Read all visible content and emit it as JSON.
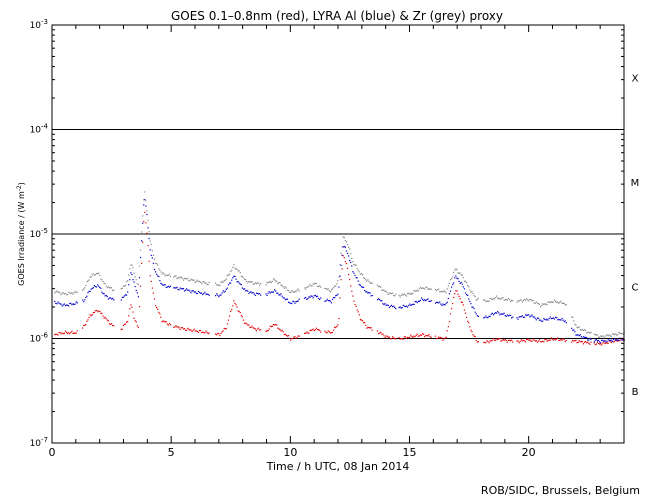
{
  "chart_data": {
    "type": "scatter",
    "title": "GOES 0.1–0.8nm (red), LYRA Al (blue) & Zr (grey) proxy",
    "xlabel": "Time / h UTC, 08 Jan 2014",
    "ylabel": "GOES Irradiance / (W m",
    "ylabel_exp": "-2",
    "ylabel_close": ")",
    "credit": "ROB/SIDC, Brussels, Belgium",
    "xlim": [
      0,
      24
    ],
    "ylim": [
      1e-07,
      0.001
    ],
    "yscale": "log",
    "x_ticks": [
      "0",
      "5",
      "10",
      "15",
      "20"
    ],
    "y_ticks": [
      {
        "base": "10",
        "exp": "-7"
      },
      {
        "base": "10",
        "exp": "-6"
      },
      {
        "base": "10",
        "exp": "-5"
      },
      {
        "base": "10",
        "exp": "-4"
      },
      {
        "base": "10",
        "exp": "-3"
      }
    ],
    "flare_classes": [
      "B",
      "C",
      "M",
      "X"
    ],
    "threshold_lines": [
      1e-06,
      1e-05,
      0.0001
    ],
    "series": [
      {
        "color": "#e00000",
        "points": [
          [
            0.0,
            1.1e-06
          ],
          [
            0.5,
            1.15e-06
          ],
          [
            1.0,
            1.15e-06
          ],
          [
            1.3,
            1.3e-06
          ],
          [
            1.6,
            1.7e-06
          ],
          [
            1.9,
            1.9e-06
          ],
          [
            2.2,
            1.6e-06
          ],
          [
            2.5,
            1.35e-06
          ],
          [
            2.9,
            1.25e-06
          ],
          [
            3.15,
            1.5e-06
          ],
          [
            3.3,
            2.2e-06
          ],
          [
            3.45,
            1.5e-06
          ],
          [
            3.6,
            1.3e-06
          ],
          [
            3.75,
            6e-06
          ],
          [
            3.85,
            1.8e-05
          ],
          [
            3.95,
            1.1e-05
          ],
          [
            4.1,
            4e-06
          ],
          [
            4.3,
            2.2e-06
          ],
          [
            4.6,
            1.5e-06
          ],
          [
            5.0,
            1.35e-06
          ],
          [
            5.5,
            1.25e-06
          ],
          [
            6.0,
            1.2e-06
          ],
          [
            6.5,
            1.15e-06
          ],
          [
            7.0,
            1.1e-06
          ],
          [
            7.3,
            1.3e-06
          ],
          [
            7.6,
            2.3e-06
          ],
          [
            7.8,
            1.9e-06
          ],
          [
            8.1,
            1.4e-06
          ],
          [
            8.5,
            1.25e-06
          ],
          [
            9.0,
            1.2e-06
          ],
          [
            9.3,
            1.4e-06
          ],
          [
            9.6,
            1.2e-06
          ],
          [
            10.0,
            1e-06
          ],
          [
            10.5,
            1.1e-06
          ],
          [
            11.0,
            1.25e-06
          ],
          [
            11.3,
            1.2e-06
          ],
          [
            11.7,
            1.15e-06
          ],
          [
            12.0,
            1.4e-06
          ],
          [
            12.1,
            3.5e-06
          ],
          [
            12.2,
            6.5e-06
          ],
          [
            12.4,
            4.5e-06
          ],
          [
            12.6,
            2.5e-06
          ],
          [
            12.9,
            1.6e-06
          ],
          [
            13.2,
            1.3e-06
          ],
          [
            13.6,
            1.2e-06
          ],
          [
            14.0,
            1.05e-06
          ],
          [
            14.5,
            1e-06
          ],
          [
            15.0,
            1.05e-06
          ],
          [
            15.5,
            1.1e-06
          ],
          [
            16.0,
            1.05e-06
          ],
          [
            16.5,
            1e-06
          ],
          [
            16.9,
            3e-06
          ],
          [
            17.2,
            2.2e-06
          ],
          [
            17.5,
            1.3e-06
          ],
          [
            17.8,
            9.5e-07
          ],
          [
            18.2,
            9.3e-07
          ],
          [
            18.6,
            1e-06
          ],
          [
            19.0,
            9.7e-07
          ],
          [
            19.5,
            9.5e-07
          ],
          [
            20.0,
            9.8e-07
          ],
          [
            20.5,
            9.5e-07
          ],
          [
            21.0,
            1e-06
          ],
          [
            21.5,
            9.8e-07
          ],
          [
            22.0,
            9.5e-07
          ],
          [
            22.5,
            9.2e-07
          ],
          [
            23.0,
            9e-07
          ],
          [
            23.5,
            9.5e-07
          ],
          [
            24.0,
            1e-06
          ]
        ]
      },
      {
        "color": "#0000cc",
        "points": [
          [
            0.0,
            2.3e-06
          ],
          [
            0.5,
            2.1e-06
          ],
          [
            1.0,
            2.2e-06
          ],
          [
            1.3,
            2.3e-06
          ],
          [
            1.6,
            3e-06
          ],
          [
            1.9,
            3.3e-06
          ],
          [
            2.2,
            2.6e-06
          ],
          [
            2.5,
            2.4e-06
          ],
          [
            2.9,
            2.4e-06
          ],
          [
            3.15,
            2.8e-06
          ],
          [
            3.3,
            4.5e-06
          ],
          [
            3.45,
            3.2e-06
          ],
          [
            3.6,
            2.6e-06
          ],
          [
            3.75,
            1e-05
          ],
          [
            3.85,
            2.4e-05
          ],
          [
            3.95,
            1.6e-05
          ],
          [
            4.1,
            7e-06
          ],
          [
            4.3,
            4.5e-06
          ],
          [
            4.6,
            3.3e-06
          ],
          [
            5.0,
            3.1e-06
          ],
          [
            5.5,
            3e-06
          ],
          [
            6.0,
            2.8e-06
          ],
          [
            6.5,
            2.7e-06
          ],
          [
            7.0,
            2.6e-06
          ],
          [
            7.3,
            3e-06
          ],
          [
            7.6,
            4e-06
          ],
          [
            7.8,
            3.5e-06
          ],
          [
            8.1,
            2.9e-06
          ],
          [
            8.5,
            2.7e-06
          ],
          [
            9.0,
            2.7e-06
          ],
          [
            9.3,
            2.9e-06
          ],
          [
            9.6,
            2.6e-06
          ],
          [
            10.0,
            2.2e-06
          ],
          [
            10.5,
            2.4e-06
          ],
          [
            11.0,
            2.6e-06
          ],
          [
            11.3,
            2.4e-06
          ],
          [
            11.7,
            2.3e-06
          ],
          [
            12.0,
            2.8e-06
          ],
          [
            12.1,
            5e-06
          ],
          [
            12.2,
            8e-06
          ],
          [
            12.4,
            6.5e-06
          ],
          [
            12.6,
            4.5e-06
          ],
          [
            12.9,
            3.3e-06
          ],
          [
            13.2,
            2.8e-06
          ],
          [
            13.6,
            2.5e-06
          ],
          [
            14.0,
            2.1e-06
          ],
          [
            14.5,
            2e-06
          ],
          [
            15.0,
            2.1e-06
          ],
          [
            15.5,
            2.4e-06
          ],
          [
            16.0,
            2.3e-06
          ],
          [
            16.5,
            2.1e-06
          ],
          [
            16.9,
            4e-06
          ],
          [
            17.2,
            3.3e-06
          ],
          [
            17.5,
            2.3e-06
          ],
          [
            17.8,
            1.7e-06
          ],
          [
            18.2,
            1.6e-06
          ],
          [
            18.6,
            1.8e-06
          ],
          [
            19.0,
            1.7e-06
          ],
          [
            19.5,
            1.6e-06
          ],
          [
            20.0,
            1.7e-06
          ],
          [
            20.5,
            1.5e-06
          ],
          [
            21.0,
            1.6e-06
          ],
          [
            21.5,
            1.5e-06
          ],
          [
            22.0,
            1.1e-06
          ],
          [
            22.5,
            1e-06
          ],
          [
            23.0,
            9.5e-07
          ],
          [
            23.5,
            9.8e-07
          ],
          [
            24.0,
            1e-06
          ]
        ]
      },
      {
        "color": "#888888",
        "points": [
          [
            0.0,
            2.9e-06
          ],
          [
            0.5,
            2.7e-06
          ],
          [
            1.0,
            2.8e-06
          ],
          [
            1.3,
            3e-06
          ],
          [
            1.6,
            4e-06
          ],
          [
            1.9,
            4.3e-06
          ],
          [
            2.2,
            3.3e-06
          ],
          [
            2.5,
            3e-06
          ],
          [
            2.9,
            3e-06
          ],
          [
            3.15,
            3.6e-06
          ],
          [
            3.3,
            5.5e-06
          ],
          [
            3.45,
            4e-06
          ],
          [
            3.6,
            3.3e-06
          ],
          [
            3.75,
            1.2e-05
          ],
          [
            3.85,
            2.7e-05
          ],
          [
            3.95,
            1.8e-05
          ],
          [
            4.1,
            8.5e-06
          ],
          [
            4.3,
            5.5e-06
          ],
          [
            4.6,
            4.2e-06
          ],
          [
            5.0,
            4e-06
          ],
          [
            5.5,
            3.8e-06
          ],
          [
            6.0,
            3.6e-06
          ],
          [
            6.5,
            3.4e-06
          ],
          [
            7.0,
            3.3e-06
          ],
          [
            7.3,
            3.8e-06
          ],
          [
            7.6,
            5e-06
          ],
          [
            7.8,
            4.5e-06
          ],
          [
            8.1,
            3.6e-06
          ],
          [
            8.5,
            3.4e-06
          ],
          [
            9.0,
            3.4e-06
          ],
          [
            9.3,
            3.7e-06
          ],
          [
            9.6,
            3.3e-06
          ],
          [
            10.0,
            2.8e-06
          ],
          [
            10.5,
            3e-06
          ],
          [
            11.0,
            3.4e-06
          ],
          [
            11.3,
            3.1e-06
          ],
          [
            11.7,
            2.9e-06
          ],
          [
            12.0,
            3.6e-06
          ],
          [
            12.1,
            6.5e-06
          ],
          [
            12.2,
            9.5e-06
          ],
          [
            12.4,
            8e-06
          ],
          [
            12.6,
            5.5e-06
          ],
          [
            12.9,
            4.3e-06
          ],
          [
            13.2,
            3.6e-06
          ],
          [
            13.6,
            3.3e-06
          ],
          [
            14.0,
            2.8e-06
          ],
          [
            14.5,
            2.6e-06
          ],
          [
            15.0,
            2.7e-06
          ],
          [
            15.5,
            3.1e-06
          ],
          [
            16.0,
            3e-06
          ],
          [
            16.5,
            2.8e-06
          ],
          [
            16.9,
            4.7e-06
          ],
          [
            17.2,
            4e-06
          ],
          [
            17.5,
            3e-06
          ],
          [
            17.8,
            2.4e-06
          ],
          [
            18.2,
            2.3e-06
          ],
          [
            18.6,
            2.5e-06
          ],
          [
            19.0,
            2.4e-06
          ],
          [
            19.5,
            2.3e-06
          ],
          [
            20.0,
            2.4e-06
          ],
          [
            20.5,
            2.1e-06
          ],
          [
            21.0,
            2.3e-06
          ],
          [
            21.5,
            2.2e-06
          ],
          [
            22.0,
            1.3e-06
          ],
          [
            22.5,
            1.15e-06
          ],
          [
            23.0,
            1.05e-06
          ],
          [
            23.5,
            1.1e-06
          ],
          [
            24.0,
            1.15e-06
          ]
        ]
      }
    ],
    "gaps": [
      [
        0.0,
        0.05
      ],
      [
        1.05,
        1.25
      ],
      [
        2.6,
        2.85
      ],
      [
        4.95,
        5.05
      ],
      [
        6.6,
        6.8
      ],
      [
        8.75,
        8.95
      ],
      [
        10.35,
        10.55
      ],
      [
        11.25,
        11.4
      ],
      [
        13.45,
        13.6
      ],
      [
        14.4,
        14.5
      ],
      [
        15.9,
        16.05
      ],
      [
        17.9,
        18.05
      ],
      [
        19.35,
        19.45
      ],
      [
        21.6,
        21.75
      ],
      [
        22.6,
        22.7
      ]
    ]
  }
}
